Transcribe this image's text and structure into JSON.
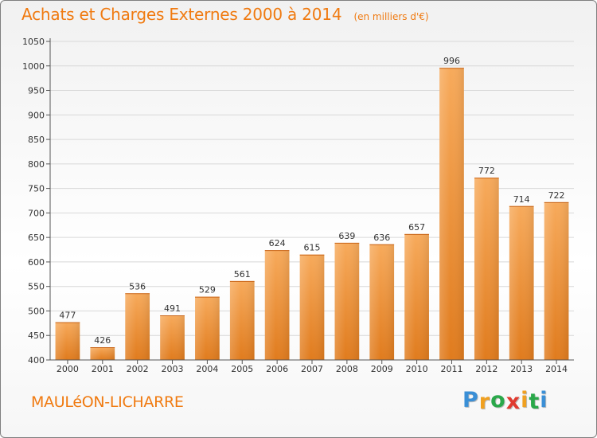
{
  "header": {
    "title": "Achats et Charges Externes 2000 à 2014",
    "subtitle": "(en milliers d'€)"
  },
  "footer": {
    "city": "MAULéON-LICHARRE",
    "brand": "Proxiti",
    "brand_letter_colors": [
      "#3a8fd6",
      "#f0a020",
      "#2aa84a",
      "#e03a2f",
      "#f0a020",
      "#2aa84a",
      "#3a8fd6"
    ]
  },
  "colors": {
    "title": "#f07a10",
    "bar_light": "#f7aa5b",
    "bar_dark": "#e07b1d",
    "grid": "#d8d8d8",
    "axis_text": "#333333"
  },
  "chart_data": {
    "type": "bar",
    "title": "Achats et Charges Externes 2000 à 2014",
    "subtitle": "(en milliers d'€)",
    "categories": [
      "2000",
      "2001",
      "2002",
      "2003",
      "2004",
      "2005",
      "2006",
      "2007",
      "2008",
      "2009",
      "2010",
      "2011",
      "2012",
      "2013",
      "2014"
    ],
    "values": [
      477,
      426,
      536,
      491,
      529,
      561,
      624,
      615,
      639,
      636,
      657,
      996,
      772,
      714,
      722
    ],
    "data_labels": [
      "477",
      "426",
      "536",
      "491",
      "529",
      "561",
      "624",
      "615",
      "639",
      "636",
      "657",
      "996",
      "772",
      "714",
      "722"
    ],
    "ylim": [
      400,
      1050
    ],
    "yticks": [
      400,
      450,
      500,
      550,
      600,
      650,
      700,
      750,
      800,
      850,
      900,
      950,
      1000,
      1050
    ],
    "ytick_labels": [
      "400",
      "450",
      "500",
      "550",
      "600",
      "650",
      "700",
      "750",
      "800",
      "850",
      "900",
      "950",
      "1000",
      "1050"
    ],
    "xlabel": "",
    "ylabel": "",
    "grid": true,
    "legend": "none"
  }
}
